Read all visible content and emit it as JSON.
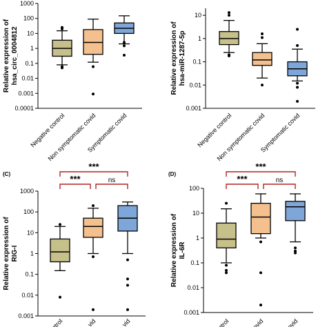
{
  "colors": {
    "negative_control": "#c6c08a",
    "non_symptomatic": "#f4c08e",
    "symptomatic": "#7fa6d8",
    "significance_bracket": "#b22222"
  },
  "chart_data": [
    {
      "type": "box",
      "panel_label": "",
      "ylabel_line1": "Relative expression of",
      "ylabel_line2": "hsa_circ_0004812",
      "yscale": "log",
      "ylim": [
        0.0001,
        1000
      ],
      "yticks": [
        "0.0001",
        "0.001",
        "0.01",
        "0.1",
        "1",
        "10",
        "100",
        "1000"
      ],
      "categories": [
        "Negative control",
        "Non symptomatic covid",
        "Symptomatic covid"
      ],
      "boxes": [
        {
          "whisker_low": 0.08,
          "q1": 0.3,
          "median": 1.0,
          "q3": 3.5,
          "whisker_high": 15,
          "outliers": [
            0.06,
            0.05,
            20,
            25
          ]
        },
        {
          "whisker_low": 0.12,
          "q1": 0.4,
          "median": 2.5,
          "q3": 18,
          "whisker_high": 90,
          "outliers": [
            0.06,
            0.0009
          ]
        },
        {
          "whisker_low": 2,
          "q1": 10,
          "median": 22,
          "q3": 50,
          "whisker_high": 150,
          "outliers": [
            0.35,
            1.5,
            2.5
          ]
        }
      ],
      "significance": []
    },
    {
      "type": "box",
      "panel_label": "",
      "ylabel_line1": "Relative expression of",
      "ylabel_line2": "hsa-miR-1287-5p",
      "yscale": "log",
      "ylim": [
        0.001,
        20
      ],
      "yticks": [
        "0.001",
        "0.01",
        "0.1",
        "1",
        "10"
      ],
      "categories": [
        "Negative control",
        "Non symptomatic covid",
        "Symptomatic covid"
      ],
      "boxes": [
        {
          "whisker_low": 0.25,
          "q1": 0.55,
          "median": 1.0,
          "q3": 2.0,
          "whisker_high": 6,
          "outliers": [
            0.2,
            0.18,
            10,
            13
          ]
        },
        {
          "whisker_low": 0.02,
          "q1": 0.07,
          "median": 0.12,
          "q3": 0.25,
          "whisker_high": 0.6,
          "outliers": [
            0.01,
            1.1,
            1.6
          ]
        },
        {
          "whisker_low": 0.015,
          "q1": 0.025,
          "median": 0.05,
          "q3": 0.1,
          "whisker_high": 0.35,
          "outliers": [
            0.012,
            0.008,
            0.002,
            0.5,
            2.5
          ]
        }
      ],
      "significance": []
    },
    {
      "type": "box",
      "panel_label": "(C)",
      "ylabel_line1": "Relative expression of",
      "ylabel_line2": "RIG-I",
      "yscale": "log",
      "ylim": [
        0.001,
        1000
      ],
      "yticks": [
        "0.001",
        "0.01",
        "0.1",
        "1",
        "10",
        "100",
        "1000"
      ],
      "categories": [
        "ntrol",
        "vid",
        "vid"
      ],
      "boxes": [
        {
          "whisker_low": 0.15,
          "q1": 0.4,
          "median": 1.2,
          "q3": 5,
          "whisker_high": 20,
          "outliers": [
            0.008,
            25
          ]
        },
        {
          "whisker_low": 1.0,
          "q1": 6,
          "median": 20,
          "q3": 50,
          "whisker_high": 150,
          "outliers": [
            0.7,
            0.002,
            200
          ]
        },
        {
          "whisker_low": 1.0,
          "q1": 12,
          "median": 50,
          "q3": 200,
          "whisker_high": 300,
          "outliers": [
            0.5,
            0.06,
            0.03,
            0.002
          ]
        }
      ],
      "significance": [
        {
          "from": 0,
          "to": 2,
          "label": "***"
        },
        {
          "from": 0,
          "to": 1,
          "label": "***"
        },
        {
          "from": 1,
          "to": 2,
          "label": "ns"
        }
      ]
    },
    {
      "type": "box",
      "panel_label": "(D)",
      "ylabel_line1": "Relative expression of",
      "ylabel_line2": "IL-6R",
      "yscale": "log",
      "ylim": [
        0.001,
        100
      ],
      "yticks": [
        "0.001",
        "0.01",
        "0.1",
        "1",
        "10",
        "100"
      ],
      "categories": [
        "ontrol",
        "ovid",
        "ovid"
      ],
      "boxes": [
        {
          "whisker_low": 0.1,
          "q1": 0.4,
          "median": 0.9,
          "q3": 4,
          "whisker_high": 15,
          "outliers": [
            0.08,
            0.05,
            0.04,
            25
          ]
        },
        {
          "whisker_low": 1.0,
          "q1": 1.5,
          "median": 7,
          "q3": 25,
          "whisker_high": 60,
          "outliers": [
            0.7,
            0.04,
            0.002
          ]
        },
        {
          "whisker_low": 0.7,
          "q1": 5,
          "median": 18,
          "q3": 30,
          "whisker_high": 60,
          "outliers": [
            0.4,
            0.3,
            0.25
          ]
        }
      ],
      "significance": [
        {
          "from": 0,
          "to": 2,
          "label": "***"
        },
        {
          "from": 0,
          "to": 1,
          "label": "***"
        },
        {
          "from": 1,
          "to": 2,
          "label": "ns"
        }
      ]
    }
  ]
}
